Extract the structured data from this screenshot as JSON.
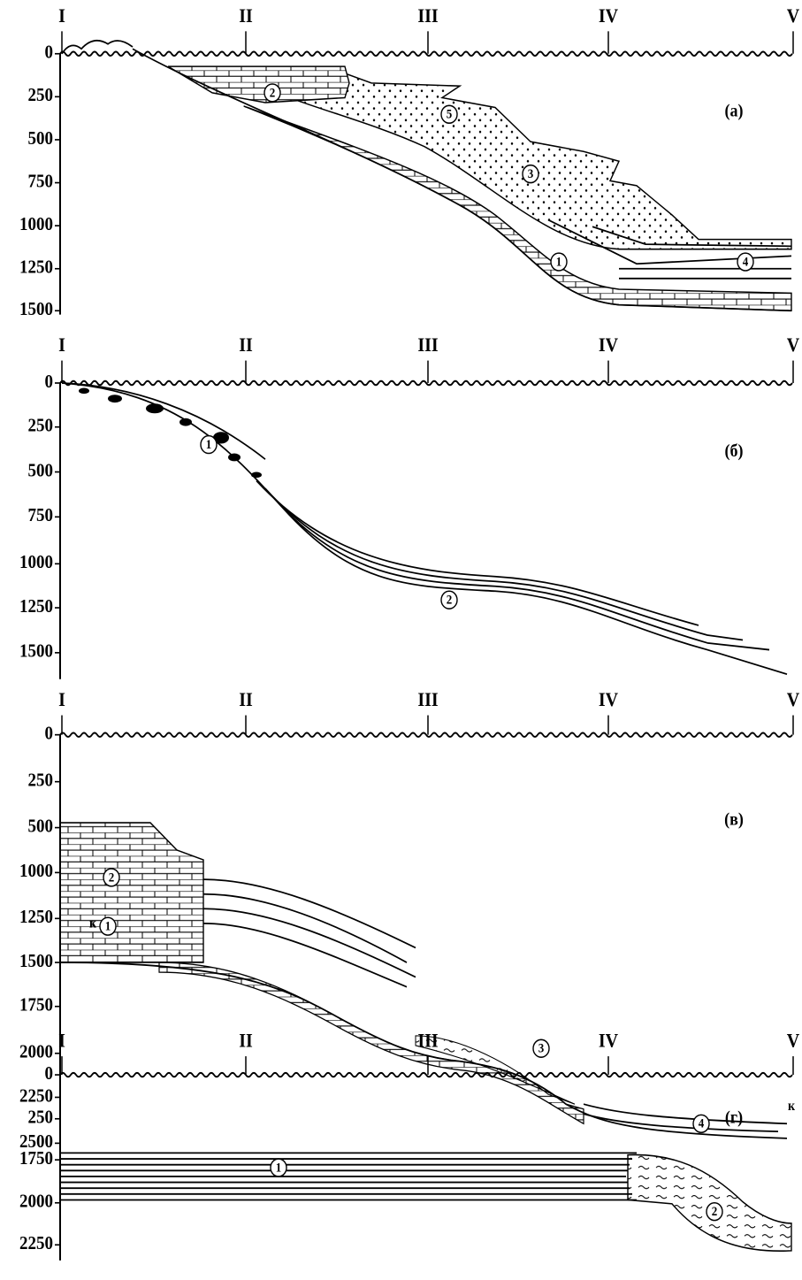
{
  "panels": [
    {
      "label": "(а)",
      "columns": [
        "I",
        "II",
        "III",
        "IV",
        "V"
      ],
      "depth_ticks": [
        0,
        250,
        500,
        750,
        1000,
        1250,
        1500
      ],
      "units": [
        "2",
        "5",
        "3",
        "1",
        "4"
      ]
    },
    {
      "label": "(б)",
      "columns": [
        "I",
        "II",
        "III",
        "IV",
        "V"
      ],
      "depth_ticks": [
        0,
        250,
        500,
        750,
        1000,
        1250,
        1500
      ],
      "units": [
        "1",
        "2"
      ]
    },
    {
      "label": "(в)",
      "columns": [
        "I",
        "II",
        "III",
        "IV",
        "V"
      ],
      "depth_ticks": [
        0,
        250,
        500,
        1000,
        1250,
        1500,
        1750,
        2000,
        2250,
        2500
      ],
      "units": [
        "2",
        "1",
        "3",
        "4"
      ],
      "marks": [
        "к",
        "к"
      ]
    },
    {
      "label": "(г)",
      "columns": [
        "I",
        "II",
        "III",
        "IV",
        "V"
      ],
      "depth_ticks": [
        0,
        250,
        1750,
        2000,
        2250
      ],
      "units": [
        "1",
        "2"
      ]
    }
  ]
}
